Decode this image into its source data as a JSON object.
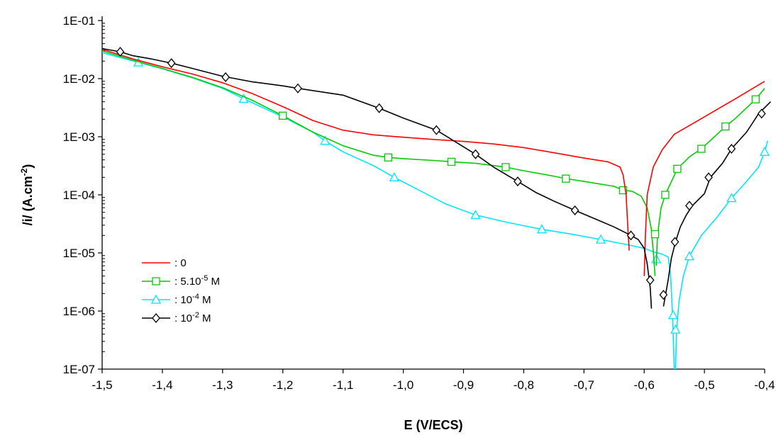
{
  "chart_data": {
    "type": "line",
    "xlabel": "E (V/ECS)",
    "ylabel": "/i/ (A.cm",
    "ylabel_sup": "-2",
    "ylabel_end": ")",
    "y_scale": "log",
    "xlim": [
      -1.5,
      -0.4
    ],
    "ylim": [
      1e-07,
      0.1
    ],
    "grid": false,
    "legend_position": "bottom-left",
    "x_ticks": [
      -1.5,
      -1.4,
      -1.3,
      -1.2,
      -1.1,
      -1.0,
      -0.9,
      -0.8,
      -0.7,
      -0.6,
      -0.5,
      -0.4
    ],
    "x_tick_labels": [
      "-1,5",
      "-1,4",
      "-1,3",
      "-1,2",
      "-1,1",
      "-1,0",
      "-0,9",
      "-0,8",
      "-0,7",
      "-0,6",
      "-0,5",
      "-0,4"
    ],
    "y_ticks": [
      1e-07,
      1e-06,
      1e-05,
      0.0001,
      0.001,
      0.01,
      0.1
    ],
    "y_tick_labels": [
      "1E-07",
      "1E-06",
      "1E-05",
      "1E-04",
      "1E-03",
      "1E-02",
      "1E-01"
    ],
    "series": [
      {
        "name": ": 0",
        "legend_main": ": 0",
        "legend_sup": "",
        "legend_tail": "",
        "color": "#ff0000",
        "marker": "none",
        "points": [
          [
            -1.5,
            0.032
          ],
          [
            -1.45,
            0.022
          ],
          [
            -1.4,
            0.016
          ],
          [
            -1.35,
            0.012
          ],
          [
            -1.3,
            0.0085
          ],
          [
            -1.25,
            0.0055
          ],
          [
            -1.2,
            0.0033
          ],
          [
            -1.15,
            0.0019
          ],
          [
            -1.1,
            0.0013
          ],
          [
            -1.05,
            0.00108
          ],
          [
            -1.0,
            0.00098
          ],
          [
            -0.95,
            0.0009
          ],
          [
            -0.9,
            0.00083
          ],
          [
            -0.85,
            0.00075
          ],
          [
            -0.8,
            0.00065
          ],
          [
            -0.75,
            0.00053
          ],
          [
            -0.7,
            0.00043
          ],
          [
            -0.66,
            0.00037
          ],
          [
            -0.64,
            0.0003
          ],
          [
            -0.635,
            0.00022
          ],
          [
            -0.63,
            0.0001
          ],
          [
            -0.627,
            2.5e-05
          ],
          [
            -0.625,
            1.1e-05
          ]
        ],
        "branch2": [
          [
            -0.6,
            4e-06
          ],
          [
            -0.598,
            2e-05
          ],
          [
            -0.595,
            0.0001
          ],
          [
            -0.585,
            0.0003
          ],
          [
            -0.57,
            0.0006
          ],
          [
            -0.55,
            0.0011
          ],
          [
            -0.5,
            0.0022
          ],
          [
            -0.45,
            0.0044
          ],
          [
            -0.4,
            0.009
          ]
        ],
        "marker_points": []
      },
      {
        "name": ": 5.10-5 M",
        "legend_main": ": 5.10",
        "legend_sup": "-5",
        "legend_tail": " M",
        "color": "#00cc00",
        "marker": "square",
        "points": [
          [
            -1.5,
            0.03
          ],
          [
            -1.45,
            0.021
          ],
          [
            -1.4,
            0.015
          ],
          [
            -1.35,
            0.0105
          ],
          [
            -1.3,
            0.007
          ],
          [
            -1.25,
            0.0042
          ],
          [
            -1.2,
            0.0023
          ],
          [
            -1.15,
            0.0012
          ],
          [
            -1.1,
            0.0007
          ],
          [
            -1.05,
            0.00048
          ],
          [
            -1.025,
            0.00044
          ],
          [
            -1.0,
            0.00042
          ],
          [
            -0.95,
            0.00039
          ],
          [
            -0.92,
            0.00037
          ],
          [
            -0.88,
            0.00035
          ],
          [
            -0.83,
            0.0003
          ],
          [
            -0.8,
            0.00026
          ],
          [
            -0.75,
            0.00021
          ],
          [
            -0.73,
            0.00019
          ],
          [
            -0.7,
            0.00017
          ],
          [
            -0.65,
            0.00014
          ],
          [
            -0.635,
            0.00012
          ],
          [
            -0.62,
            0.000115
          ],
          [
            -0.605,
            9.5e-05
          ],
          [
            -0.595,
            6e-05
          ],
          [
            -0.588,
            2.5e-05
          ],
          [
            -0.584,
            8e-06
          ],
          [
            -0.582,
            4e-06
          ]
        ],
        "branch2": [
          [
            -0.58,
            6e-06
          ],
          [
            -0.578,
            2e-05
          ],
          [
            -0.572,
            6e-05
          ],
          [
            -0.565,
            0.0001
          ],
          [
            -0.545,
            0.00028
          ],
          [
            -0.525,
            0.00045
          ],
          [
            -0.505,
            0.00062
          ],
          [
            -0.465,
            0.0015
          ],
          [
            -0.45,
            0.002
          ],
          [
            -0.415,
            0.0044
          ],
          [
            -0.4,
            0.0068
          ]
        ],
        "marker_points": [
          [
            -1.2,
            0.0023
          ],
          [
            -1.025,
            0.00044
          ],
          [
            -0.92,
            0.00037
          ],
          [
            -0.83,
            0.0003
          ],
          [
            -0.73,
            0.00019
          ],
          [
            -0.635,
            0.00012
          ],
          [
            -0.582,
            2.1e-05
          ],
          [
            -0.565,
            0.0001
          ],
          [
            -0.545,
            0.00028
          ],
          [
            -0.505,
            0.00062
          ],
          [
            -0.465,
            0.0015
          ],
          [
            -0.415,
            0.0044
          ]
        ]
      },
      {
        "name": ": 10-4 M",
        "legend_main": ": 10",
        "legend_sup": "-4",
        "legend_tail": " M",
        "color": "#00e5ff",
        "marker": "triangle",
        "points": [
          [
            -1.5,
            0.028
          ],
          [
            -1.44,
            0.019
          ],
          [
            -1.4,
            0.0148
          ],
          [
            -1.35,
            0.0103
          ],
          [
            -1.3,
            0.0068
          ],
          [
            -1.265,
            0.0045
          ],
          [
            -1.2,
            0.0022
          ],
          [
            -1.15,
            0.0012
          ],
          [
            -1.13,
            0.00085
          ],
          [
            -1.1,
            0.00055
          ],
          [
            -1.05,
            0.00032
          ],
          [
            -1.015,
            0.0002
          ],
          [
            -0.98,
            0.00013
          ],
          [
            -0.93,
            7e-05
          ],
          [
            -0.88,
            4.5e-05
          ],
          [
            -0.83,
            3.4e-05
          ],
          [
            -0.77,
            2.55e-05
          ],
          [
            -0.72,
            2.1e-05
          ],
          [
            -0.672,
            1.7e-05
          ],
          [
            -0.63,
            1.4e-05
          ],
          [
            -0.6,
            1.2e-05
          ],
          [
            -0.585,
            1.05e-05
          ],
          [
            -0.57,
            9.5e-06
          ],
          [
            -0.56,
            8.5e-06
          ],
          [
            -0.556,
            4e-06
          ],
          [
            -0.553,
            9e-07
          ],
          [
            -0.551,
            2e-07
          ],
          [
            -0.55,
            1e-07
          ]
        ],
        "branch2": [
          [
            -0.548,
            1e-07
          ],
          [
            -0.546,
            5e-07
          ],
          [
            -0.542,
            1.5e-06
          ],
          [
            -0.535,
            4e-06
          ],
          [
            -0.525,
            8.8e-06
          ],
          [
            -0.505,
            2e-05
          ],
          [
            -0.48,
            4e-05
          ],
          [
            -0.455,
            8.8e-05
          ],
          [
            -0.43,
            0.00017
          ],
          [
            -0.41,
            0.0003
          ],
          [
            -0.4,
            0.00055
          ],
          [
            -0.395,
            0.00085
          ]
        ],
        "marker_points": [
          [
            -1.44,
            0.019
          ],
          [
            -1.265,
            0.0045
          ],
          [
            -1.13,
            0.00085
          ],
          [
            -1.015,
            0.0002
          ],
          [
            -0.88,
            4.5e-05
          ],
          [
            -0.77,
            2.55e-05
          ],
          [
            -0.672,
            1.7e-05
          ],
          [
            -0.58,
            7.8e-06
          ],
          [
            -0.552,
            8.5e-07
          ],
          [
            -0.548,
            4.8e-07
          ],
          [
            -0.525,
            8.8e-06
          ],
          [
            -0.455,
            8.8e-05
          ],
          [
            -0.4,
            0.00055
          ]
        ]
      },
      {
        "name": ": 10-2 M",
        "legend_main": ": 10",
        "legend_sup": "-2",
        "legend_tail": " M",
        "color": "#000000",
        "marker": "diamond",
        "points": [
          [
            -1.5,
            0.033
          ],
          [
            -1.47,
            0.029
          ],
          [
            -1.45,
            0.025
          ],
          [
            -1.42,
            0.022
          ],
          [
            -1.385,
            0.0185
          ],
          [
            -1.35,
            0.015
          ],
          [
            -1.3,
            0.011
          ],
          [
            -1.25,
            0.0088
          ],
          [
            -1.2,
            0.0075
          ],
          [
            -1.175,
            0.0068
          ],
          [
            -1.1,
            0.0052
          ],
          [
            -1.04,
            0.0031
          ],
          [
            -1.0,
            0.0021
          ],
          [
            -0.945,
            0.0013
          ],
          [
            -0.92,
            0.0009
          ],
          [
            -0.88,
            0.0005
          ],
          [
            -0.85,
            0.0003
          ],
          [
            -0.81,
            0.00017
          ],
          [
            -0.78,
            0.00011
          ],
          [
            -0.75,
            7.8e-05
          ],
          [
            -0.715,
            5.4e-05
          ],
          [
            -0.68,
            3.8e-05
          ],
          [
            -0.65,
            2.8e-05
          ],
          [
            -0.622,
            2e-05
          ],
          [
            -0.61,
            1.7e-05
          ],
          [
            -0.6,
            1.2e-05
          ],
          [
            -0.595,
            6.5e-06
          ],
          [
            -0.59,
            2.5e-06
          ],
          [
            -0.588,
            1.1e-06
          ]
        ],
        "branch2": [
          [
            -0.568,
            1.2e-06
          ],
          [
            -0.565,
            1.8e-06
          ],
          [
            -0.56,
            3.5e-06
          ],
          [
            -0.555,
            8e-06
          ],
          [
            -0.548,
            1.55e-05
          ],
          [
            -0.54,
            2.8e-05
          ],
          [
            -0.53,
            4.5e-05
          ],
          [
            -0.52,
            6.5e-05
          ],
          [
            -0.5,
            0.000105
          ],
          [
            -0.49,
            0.0002
          ],
          [
            -0.47,
            0.00035
          ],
          [
            -0.455,
            0.00062
          ],
          [
            -0.43,
            0.0012
          ],
          [
            -0.41,
            0.0025
          ],
          [
            -0.39,
            0.004
          ]
        ],
        "marker_points": [
          [
            -1.47,
            0.029
          ],
          [
            -1.385,
            0.0185
          ],
          [
            -1.295,
            0.0106
          ],
          [
            -1.175,
            0.0068
          ],
          [
            -1.04,
            0.0031
          ],
          [
            -0.945,
            0.0013
          ],
          [
            -0.88,
            0.0005
          ],
          [
            -0.81,
            0.00017
          ],
          [
            -0.715,
            5.4e-05
          ],
          [
            -0.622,
            2e-05
          ],
          [
            -0.59,
            3.4e-06
          ],
          [
            -0.568,
            1.9e-06
          ],
          [
            -0.549,
            1.55e-05
          ],
          [
            -0.525,
            6.5e-05
          ],
          [
            -0.493,
            0.0002
          ],
          [
            -0.455,
            0.00062
          ],
          [
            -0.405,
            0.0025
          ]
        ]
      }
    ]
  }
}
